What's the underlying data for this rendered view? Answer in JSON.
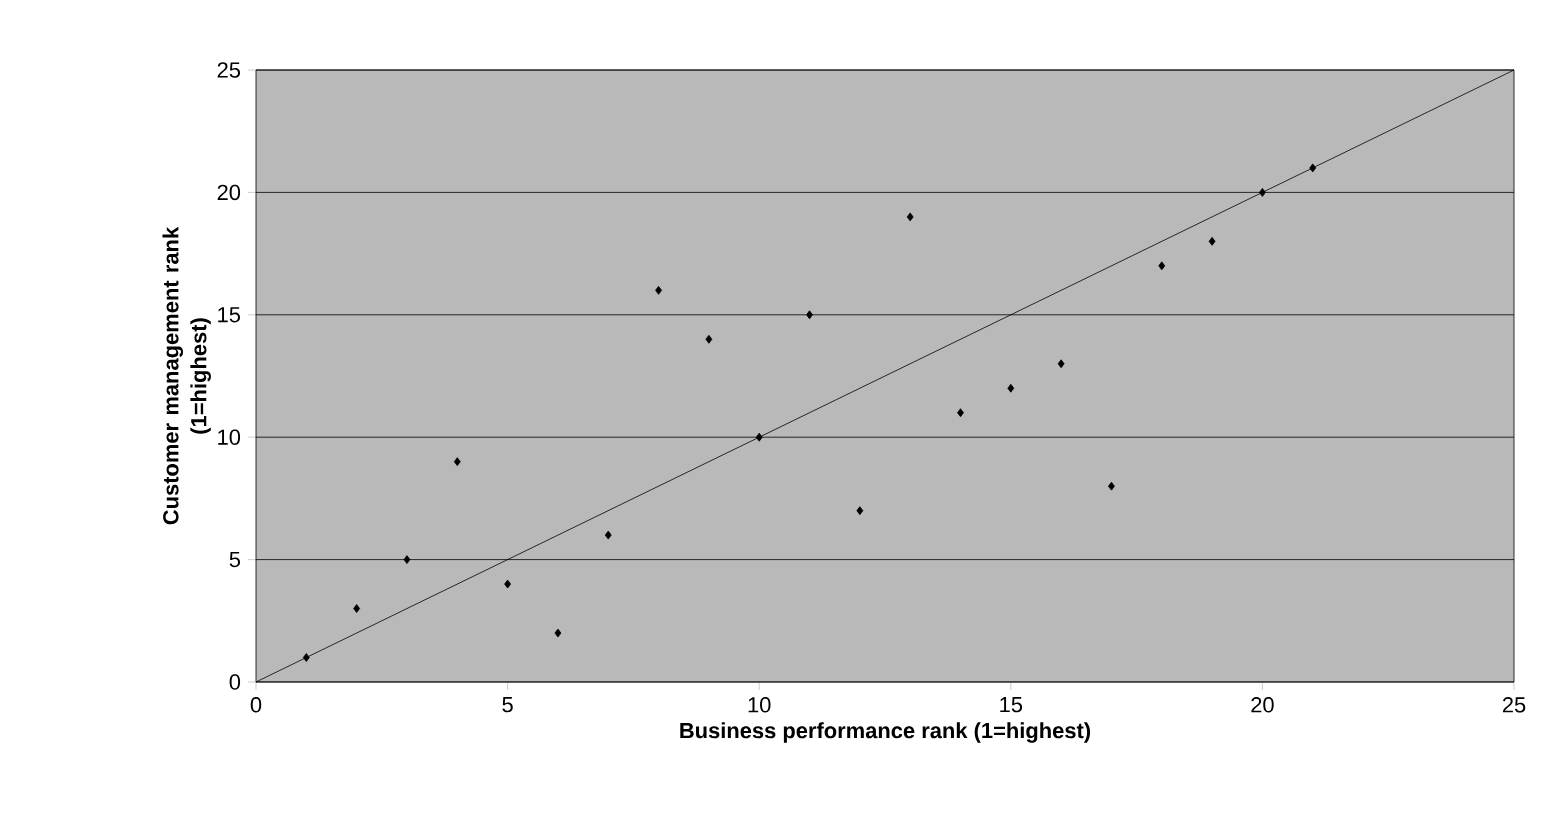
{
  "chart_data": {
    "type": "scatter",
    "xlabel": "Business performance rank (1=highest)",
    "ylabel": "Customer management rank\n(1=highest)",
    "x": [
      1,
      2,
      3,
      4,
      5,
      6,
      7,
      8,
      9,
      10,
      11,
      12,
      13,
      14,
      15,
      16,
      17,
      18,
      19,
      20,
      21
    ],
    "series": [
      {
        "type": "scatter",
        "color": "#000000",
        "marker": "diamond",
        "values": [
          1,
          3,
          5,
          9,
          4,
          2,
          6,
          16,
          14,
          10,
          15,
          7,
          19,
          11,
          12,
          13,
          8,
          17,
          18,
          20,
          21
        ]
      },
      {
        "type": "line",
        "color": "#000000",
        "x": [
          0,
          25
        ],
        "values": [
          0,
          25
        ]
      }
    ],
    "xlim": [
      0,
      25
    ],
    "ylim": [
      0,
      25
    ],
    "xticks": [
      0,
      5,
      10,
      15,
      20,
      25
    ],
    "yticks": [
      0,
      5,
      10,
      15,
      20,
      25
    ],
    "grid": "y"
  }
}
